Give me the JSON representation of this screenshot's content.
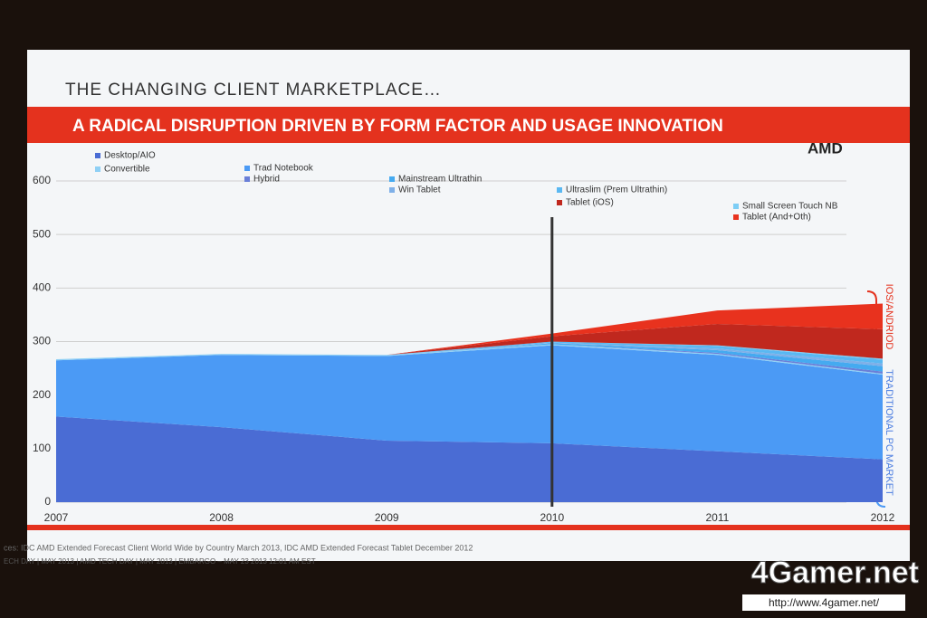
{
  "chart_data": {
    "type": "stacked-area",
    "header": "THE CHANGING CLIENT MARKETPLACE…",
    "title": "A RADICAL DISRUPTION DRIVEN BY FORM FACTOR AND USAGE INNOVATION",
    "logo": "AMD",
    "x": [
      2007,
      2008,
      2009,
      2010,
      2011,
      2012
    ],
    "xlim": [
      2007,
      2012
    ],
    "xticks": [
      2007,
      2008,
      2009,
      2010,
      2011,
      2012
    ],
    "ylim": [
      0,
      600
    ],
    "yticks": [
      0,
      100,
      200,
      300,
      400,
      500,
      600
    ],
    "grid": true,
    "vline": 2010,
    "series": [
      {
        "name": "Desktop/AIO",
        "color": "#4a6cd4",
        "values": [
          160,
          140,
          115,
          110,
          95,
          80
        ]
      },
      {
        "name": "Trad Notebook",
        "color": "#4b9af5",
        "values": [
          105,
          135,
          158,
          183,
          180,
          158
        ]
      },
      {
        "name": "Convertible",
        "color": "#8fd0f5",
        "values": [
          2,
          2,
          2,
          2,
          2,
          2
        ]
      },
      {
        "name": "Hybrid",
        "color": "#6a7fd8",
        "values": [
          0,
          0,
          0,
          0,
          2,
          4
        ]
      },
      {
        "name": "Mainstream Ultrathin",
        "color": "#45aaf0",
        "values": [
          0,
          0,
          0,
          2,
          5,
          10
        ]
      },
      {
        "name": "Win Tablet",
        "color": "#7fb0e8",
        "values": [
          0,
          0,
          0,
          1,
          3,
          5
        ]
      },
      {
        "name": "Ultraslim (Prem Ultrathin)",
        "color": "#5ab8f2",
        "values": [
          0,
          0,
          0,
          2,
          5,
          7
        ]
      },
      {
        "name": "Small Screen Touch NB",
        "color": "#7ccdf5",
        "values": [
          0,
          0,
          0,
          0,
          1,
          2
        ]
      },
      {
        "name": "Tablet (iOS)",
        "color": "#c0281e",
        "values": [
          0,
          0,
          0,
          10,
          40,
          55
        ]
      },
      {
        "name": "Tablet (And+Oth)",
        "color": "#e8321e",
        "values": [
          0,
          0,
          0,
          5,
          25,
          48
        ]
      }
    ],
    "annotations": [
      "IOS/ANDRIOD",
      "TRADITIONAL PC MARKET"
    ],
    "source": "ces: IDC AMD Extended  Forecast Client World Wide by Country  March 2013,  IDC AMD Extended Forecast Tablet December 2012",
    "footer": "ECH DAY   |   MAY 2013   |   AMD TECH DAY   |   MAY 2013   |   EMBARGO – MAY 23 2013 12:01 AM EST",
    "watermark": "4Gamer.net",
    "url": "http://www.4gamer.net/"
  }
}
